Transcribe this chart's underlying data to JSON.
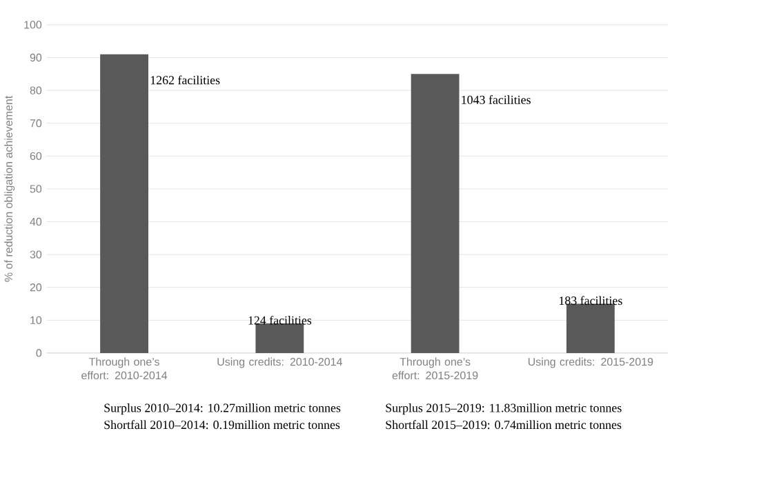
{
  "chart_data": {
    "type": "bar",
    "ylabel": "% of reduction obligation achievement",
    "categories": [
      "Through one’s effort: 2010-2014",
      "Using credits: 2010-2014",
      "Through one’s effort: 2015-2019",
      "Using credits: 2015-2019"
    ],
    "values": [
      91,
      9,
      85,
      15
    ],
    "color": "#595959",
    "ylim": [
      0,
      100
    ],
    "yticks": [
      0,
      10,
      20,
      30,
      40,
      50,
      60,
      70,
      80,
      90,
      100
    ],
    "grid": "y",
    "annotations": [
      {
        "text": "1262 facilities",
        "x": "Through one’s effort: 2010-2014",
        "y": 91
      },
      {
        "text": "124 facilities",
        "x": "Using credits: 2010-2014",
        "y": 9
      },
      {
        "text": "1043 facilities",
        "x": "Through one’s effort: 2015-2019",
        "y": 85
      },
      {
        "text": "183 facilities",
        "x": "Using credits: 2015-2019",
        "y": 15
      },
      "Surplus  2010–2014: 10.27million metric tonnes",
      "Surplus  2015–2019: 11.83million  metric tonnes",
      "Shortfall  2010–2014: 0.19million metric tonnes",
      "Shortfall  2015–2019: 0.74million metric tonnes"
    ]
  }
}
